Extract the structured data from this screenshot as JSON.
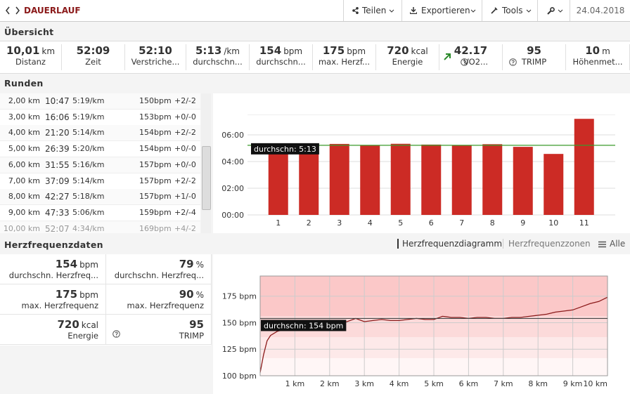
{
  "header": {
    "title": "DAUERLAUF",
    "buttons": [
      "Teilen",
      "Exportieren",
      "Tools"
    ],
    "date": "24.04.2018"
  },
  "overview": {
    "title": "Übersicht",
    "stats": [
      {
        "value": "10,01",
        "unit": "km",
        "label": "Distanz"
      },
      {
        "value": "52:09",
        "label": "Zeit"
      },
      {
        "value": "52:10",
        "label": "Verstriche..."
      },
      {
        "value": "5:13",
        "unit": "/km",
        "label": "durchschn..."
      },
      {
        "value": "154",
        "unit": "bpm",
        "label": "durchschn..."
      },
      {
        "value": "175",
        "unit": "bpm",
        "label": "max. Herzf..."
      },
      {
        "value": "720",
        "unit": "kcal",
        "label": "Energie"
      },
      {
        "value": "42.17",
        "label": "VO2..."
      },
      {
        "value": "95",
        "label": "TRIMP"
      },
      {
        "value": "10",
        "unit": "m",
        "label": "Höhenmet..."
      }
    ]
  },
  "laps": {
    "title": "Runden",
    "rows": [
      [
        "2,00 km",
        "10:47",
        "5:19/km",
        "150bpm",
        "+2/-2"
      ],
      [
        "3,00 km",
        "16:06",
        "5:19/km",
        "153bpm",
        "+0/-0"
      ],
      [
        "4,00 km",
        "21:20",
        "5:14/km",
        "154bpm",
        "+2/-2"
      ],
      [
        "5,00 km",
        "26:39",
        "5:20/km",
        "154bpm",
        "+0/-0"
      ],
      [
        "6,00 km",
        "31:55",
        "5:16/km",
        "157bpm",
        "+0/-0"
      ],
      [
        "7,00 km",
        "37:09",
        "5:14/km",
        "157bpm",
        "+2/-2"
      ],
      [
        "8,00 km",
        "42:27",
        "5:18/km",
        "157bpm",
        "+1/-0"
      ],
      [
        "9,00 km",
        "47:33",
        "5:06/km",
        "159bpm",
        "+2/-4"
      ],
      [
        "10,00 km",
        "52:07",
        "4:34/km",
        "169bpm",
        "+4/-2"
      ]
    ]
  },
  "heart_rate": {
    "title": "Herzfrequenzdaten",
    "tabs": [
      "Herzfrequenzdiagramm",
      "Herzfrequenzzonen",
      "Alle"
    ],
    "stats": [
      {
        "value": "154",
        "unit": "bpm",
        "label": "durchschn. Herzfreq..."
      },
      {
        "value": "79",
        "unit": "%",
        "label": "durchschn. Herzfreq..."
      },
      {
        "value": "175",
        "unit": "bpm",
        "label": "max. Herzfrequenz"
      },
      {
        "value": "90",
        "unit": "%",
        "label": "max. Herzfrequenz"
      },
      {
        "value": "720",
        "unit": "kcal",
        "label": "Energie"
      },
      {
        "value": "95",
        "label": "TRIMP"
      }
    ]
  },
  "chart_data": [
    {
      "type": "bar",
      "categories": [
        "1",
        "2",
        "3",
        "4",
        "5",
        "6",
        "7",
        "8",
        "9",
        "10",
        "11"
      ],
      "values": [
        5.3,
        5.32,
        5.32,
        5.23,
        5.33,
        5.27,
        5.23,
        5.3,
        5.1,
        4.57,
        7.2
      ],
      "color": "#cc2b25",
      "ylim": [
        0,
        7.5
      ],
      "yticks": [
        {
          "value": 0,
          "label": "00:00"
        },
        {
          "value": 2,
          "label": "02:00"
        },
        {
          "value": 4,
          "label": "04:00"
        },
        {
          "value": 6,
          "label": "06:00"
        }
      ],
      "grid": true,
      "average": {
        "value": 5.217,
        "label": "durchschn: 5:13"
      },
      "average_color": "#3a9a2a"
    },
    {
      "type": "line",
      "x": [
        0,
        0.1,
        0.2,
        0.3,
        0.5,
        0.75,
        1,
        1.25,
        1.5,
        1.75,
        2,
        2.25,
        2.5,
        2.75,
        3,
        3.25,
        3.5,
        3.75,
        4,
        4.25,
        4.5,
        4.75,
        5,
        5.25,
        5.5,
        5.75,
        6,
        6.25,
        6.5,
        6.75,
        7,
        7.25,
        7.5,
        7.75,
        8,
        8.25,
        8.5,
        8.75,
        9,
        9.25,
        9.5,
        9.75,
        10
      ],
      "values": [
        103,
        120,
        133,
        138,
        142,
        144,
        146,
        146,
        147,
        148,
        148,
        150,
        151,
        154,
        151,
        152,
        153,
        152,
        152,
        153,
        154,
        153,
        153,
        156,
        155,
        155,
        154,
        155,
        155,
        154,
        154,
        155,
        155,
        156,
        157,
        158,
        160,
        161,
        162,
        165,
        168,
        170,
        174
      ],
      "color": "#8b1a1a",
      "xlim": [
        0,
        10
      ],
      "xticks": [
        {
          "value": 1,
          "label": "1 km"
        },
        {
          "value": 2,
          "label": "2 km"
        },
        {
          "value": 3,
          "label": "3 km"
        },
        {
          "value": 4,
          "label": "4 km"
        },
        {
          "value": 5,
          "label": "5 km"
        },
        {
          "value": 6,
          "label": "6 km"
        },
        {
          "value": 7,
          "label": "7 km"
        },
        {
          "value": 8,
          "label": "8 km"
        },
        {
          "value": 9,
          "label": "9 km"
        },
        {
          "value": 10,
          "label": "10 km"
        }
      ],
      "ylim": [
        100,
        194
      ],
      "yticks": [
        {
          "value": 100,
          "label": "100 bpm"
        },
        {
          "value": 125,
          "label": "125 bpm"
        },
        {
          "value": 150,
          "label": "150 bpm"
        },
        {
          "value": 175,
          "label": "175 bpm"
        }
      ],
      "grid": true,
      "average": {
        "value": 154,
        "label": "durchschn: 154 bpm"
      },
      "average_color": "#444444"
    }
  ]
}
